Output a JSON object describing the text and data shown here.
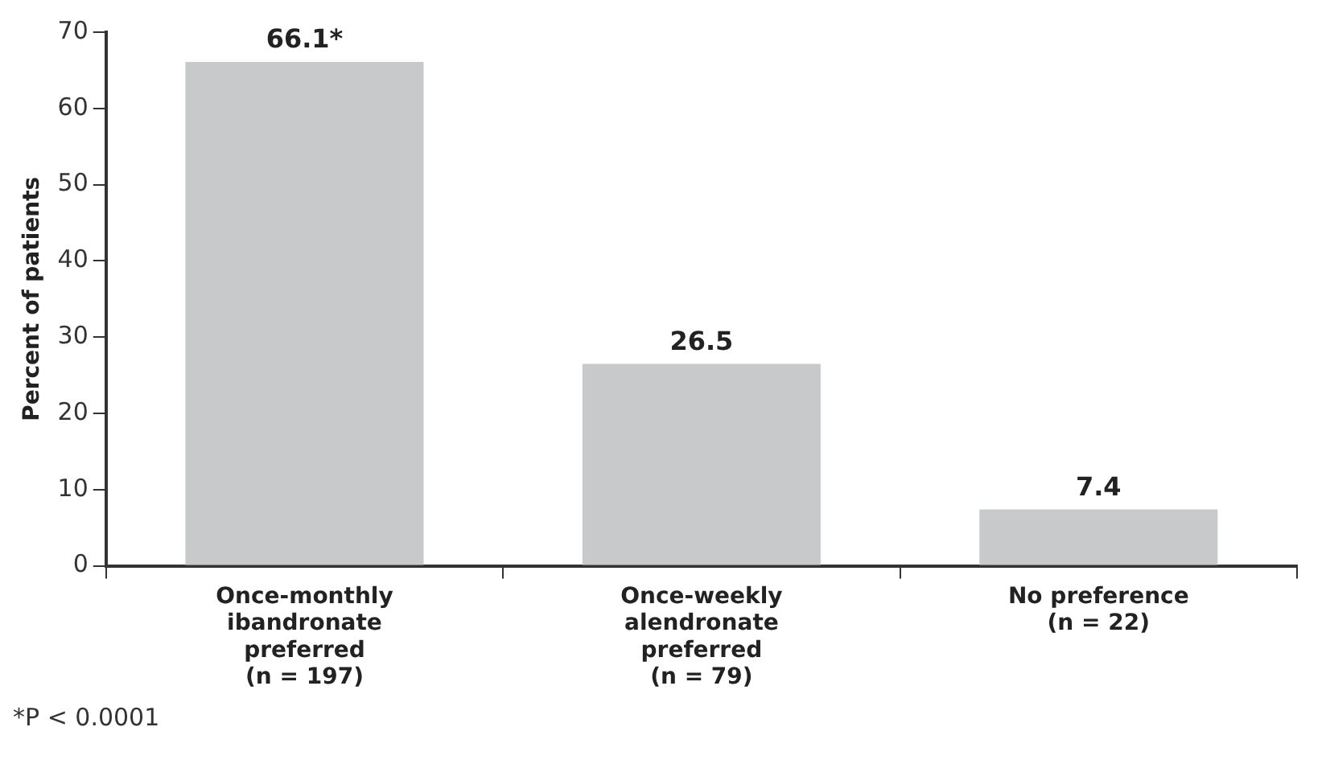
{
  "chart_data": {
    "type": "bar",
    "ylabel": "Percent of patients",
    "categories": [
      "Once-monthly\nibandronate\npreferred\n(n = 197)",
      "Once-weekly\nalendronate\npreferred\n(n = 79)",
      "No preference\n(n = 22)"
    ],
    "values": [
      66.1,
      26.5,
      7.4
    ],
    "value_labels": [
      "66.1*",
      "26.5",
      "7.4"
    ],
    "color": "#c8c9cb",
    "ylim": [
      0,
      70
    ],
    "yticks": [
      0,
      10,
      20,
      30,
      40,
      50,
      60,
      70
    ],
    "grid": false,
    "legend": false,
    "annotations": [
      "*P < 0.0001"
    ]
  }
}
